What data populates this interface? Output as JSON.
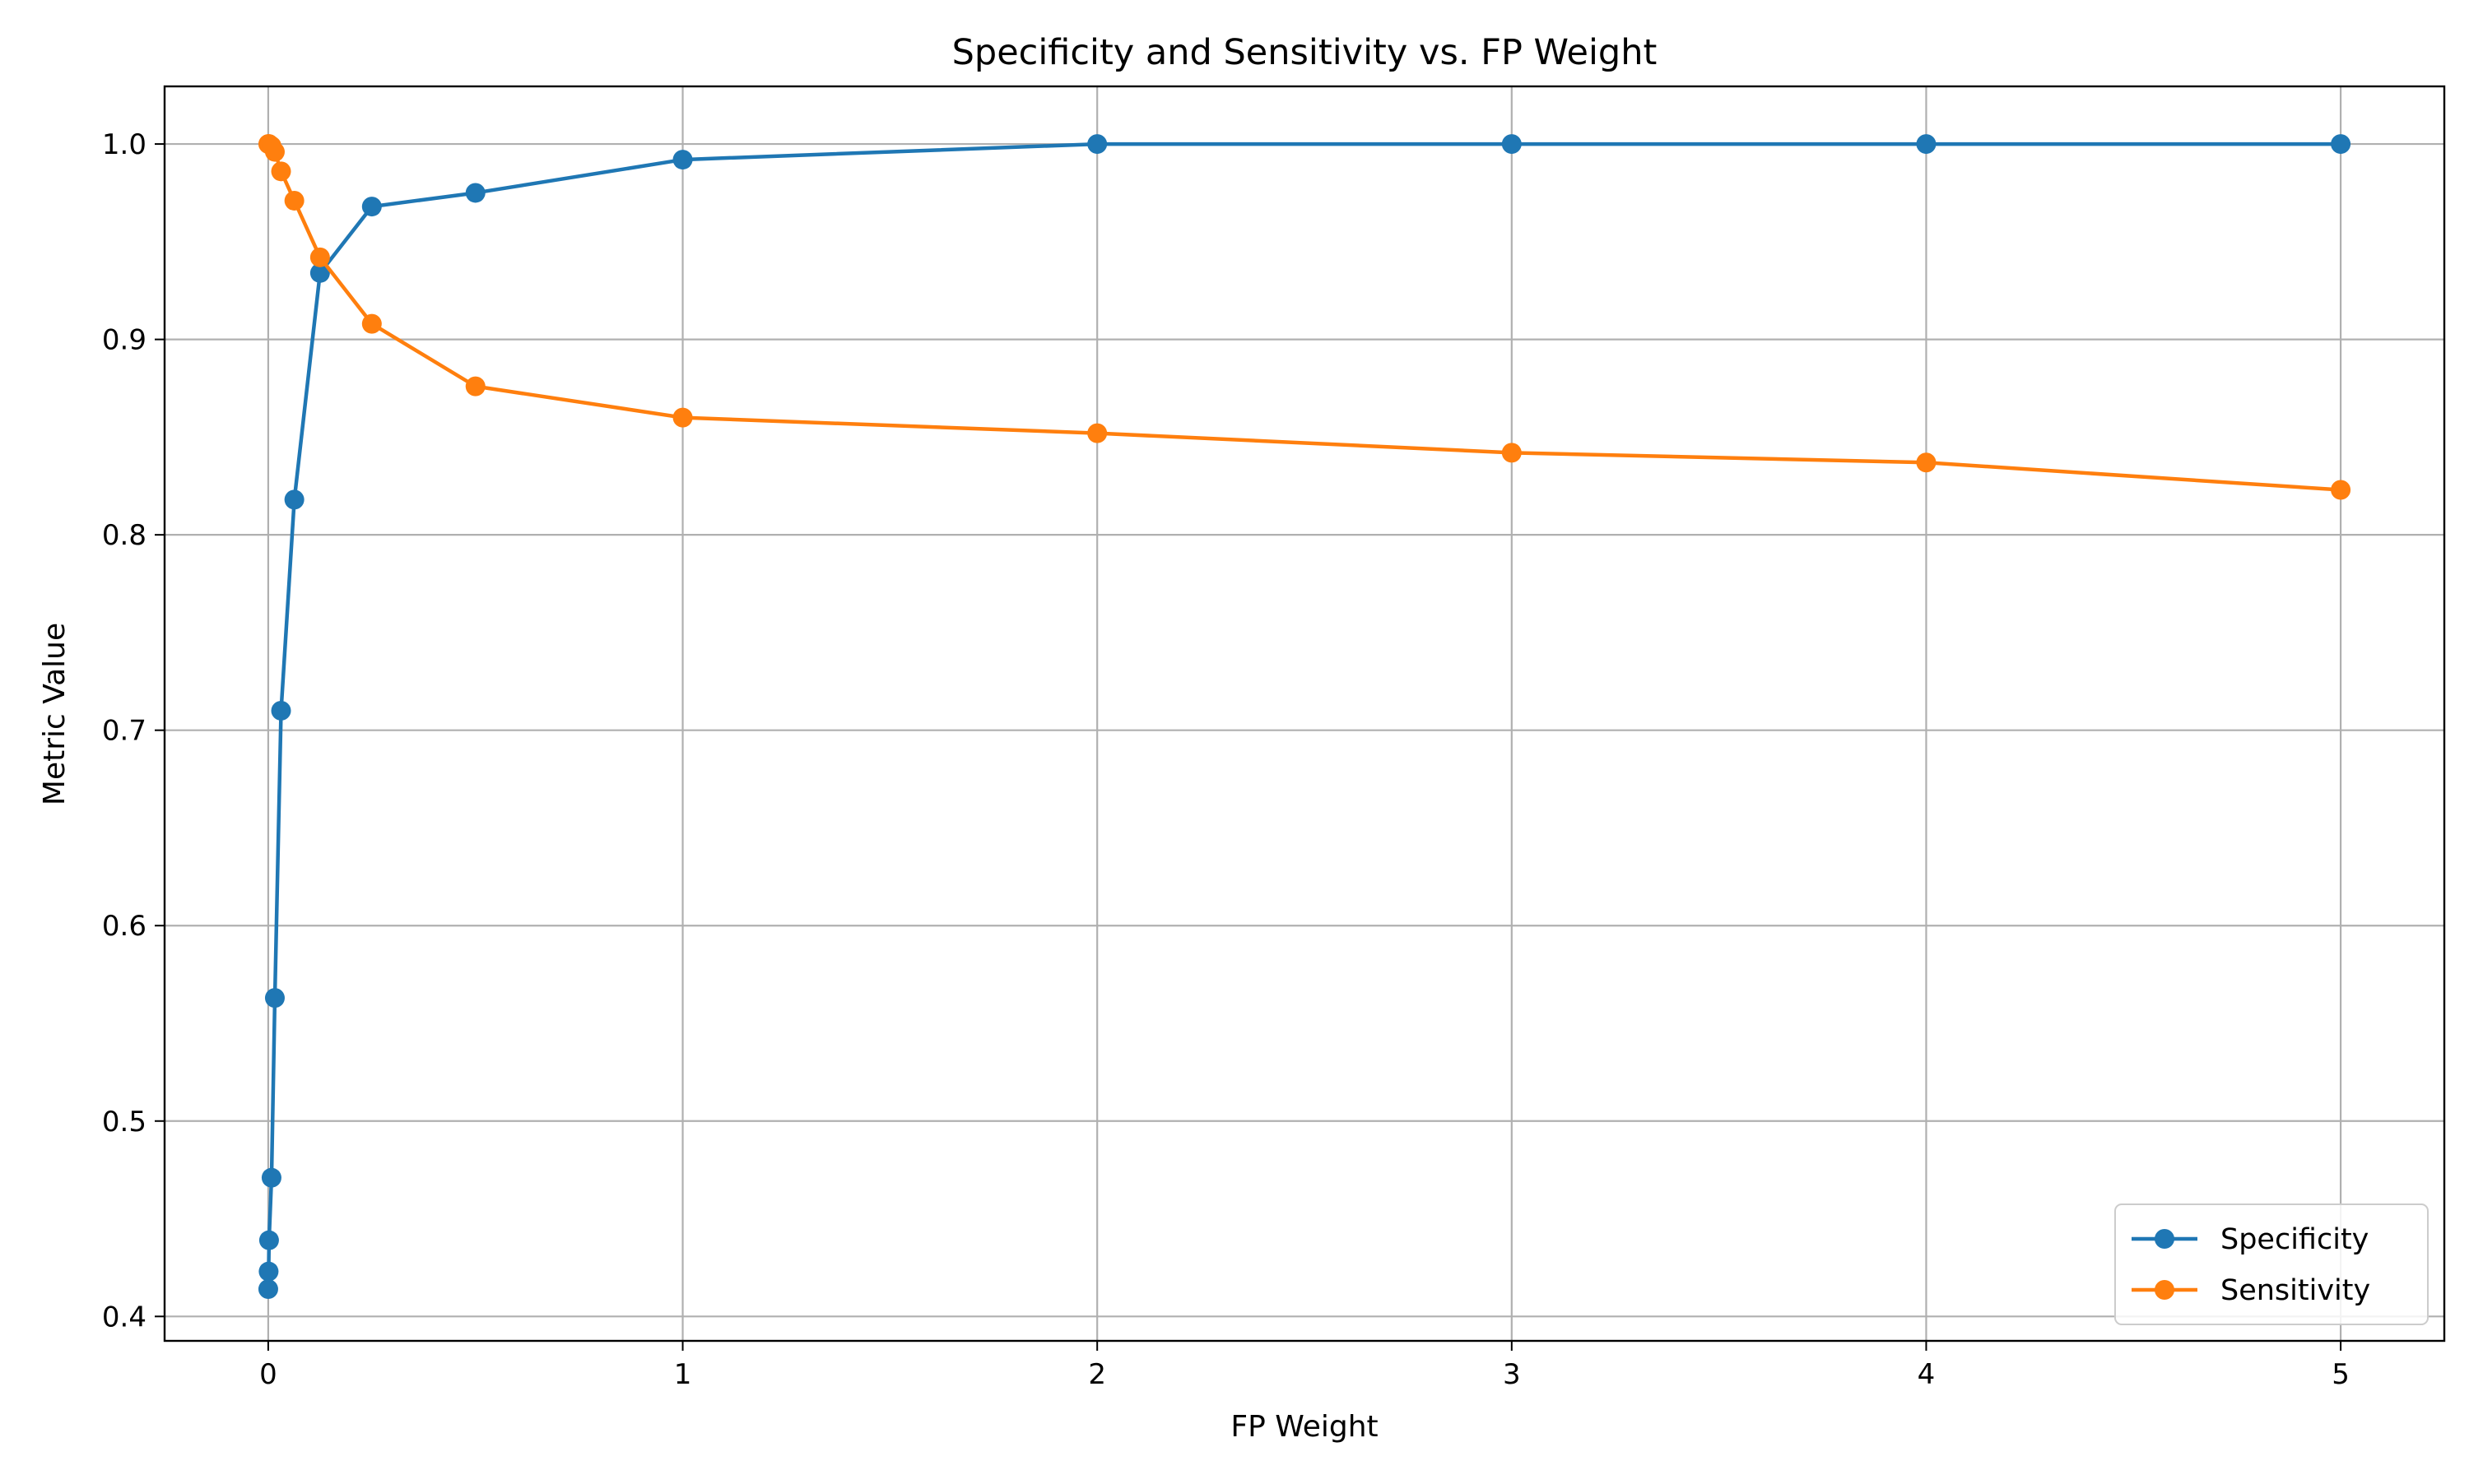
{
  "chart_data": {
    "type": "line",
    "title": "Specificity and Sensitivity vs. FP Weight",
    "xlabel": "FP Weight",
    "ylabel": "Metric Value",
    "xlim": [
      -0.25,
      5.25
    ],
    "ylim": [
      0.3875,
      1.0295
    ],
    "x_ticks": [
      0,
      1,
      2,
      3,
      4,
      5
    ],
    "x_tick_labels": [
      "0",
      "1",
      "2",
      "3",
      "4",
      "5"
    ],
    "y_ticks": [
      0.4,
      0.5,
      0.6,
      0.7,
      0.8,
      0.9,
      1.0
    ],
    "y_tick_labels": [
      "0.4",
      "0.5",
      "0.6",
      "0.7",
      "0.8",
      "0.9",
      "1.0"
    ],
    "grid": true,
    "legend_position": "bottom-right",
    "series": [
      {
        "name": "Specificity",
        "color": "#1f77b4",
        "marker": "circle",
        "points": [
          [
            0.0001,
            0.414
          ],
          [
            0.001,
            0.423
          ],
          [
            0.002,
            0.439
          ],
          [
            0.008,
            0.471
          ],
          [
            0.016,
            0.563
          ],
          [
            0.031,
            0.71
          ],
          [
            0.063,
            0.818
          ],
          [
            0.125,
            0.934
          ],
          [
            0.25,
            0.968
          ],
          [
            0.5,
            0.975
          ],
          [
            1,
            0.992
          ],
          [
            2,
            1.0
          ],
          [
            3,
            1.0
          ],
          [
            4,
            1.0
          ],
          [
            5,
            1.0
          ]
        ]
      },
      {
        "name": "Sensitivity",
        "color": "#ff7f0e",
        "marker": "circle",
        "points": [
          [
            0.0001,
            1.0
          ],
          [
            0.001,
            1.0
          ],
          [
            0.002,
            1.0
          ],
          [
            0.008,
            0.999
          ],
          [
            0.016,
            0.996
          ],
          [
            0.031,
            0.986
          ],
          [
            0.063,
            0.971
          ],
          [
            0.125,
            0.942
          ],
          [
            0.25,
            0.908
          ],
          [
            0.5,
            0.876
          ],
          [
            1,
            0.86
          ],
          [
            2,
            0.852
          ],
          [
            3,
            0.842
          ],
          [
            4,
            0.837
          ],
          [
            5,
            0.823
          ]
        ]
      }
    ]
  }
}
